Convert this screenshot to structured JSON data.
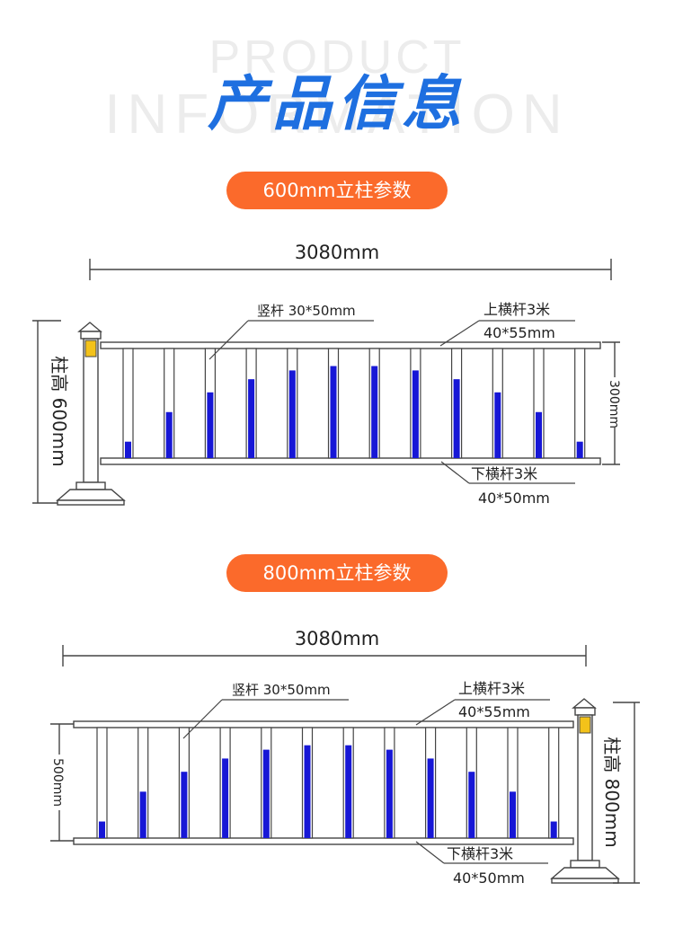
{
  "header": {
    "bg_line1": "PRODUCT",
    "bg_line2": "INFORMATION",
    "title": "产品信息"
  },
  "diagrams": [
    {
      "badge": "600mm立柱参数",
      "total_length": "3080mm",
      "vertical_bar": "竖杆 30*50mm",
      "top_rail_name": "上横杆3米",
      "top_rail_size": "40*55mm",
      "bottom_rail_name": "下横杆3米",
      "bottom_rail_size": "40*50mm",
      "post_height": "柱高 600mm",
      "panel_height": "300mm"
    },
    {
      "badge": "800mm立柱参数",
      "total_length": "3080mm",
      "vertical_bar": "竖杆 30*50mm",
      "top_rail_name": "上横杆3米",
      "top_rail_size": "40*55mm",
      "bottom_rail_name": "下横杆3米",
      "bottom_rail_size": "40*50mm",
      "post_height": "柱高 800mm",
      "panel_height": "500mm"
    }
  ],
  "colors": {
    "title_blue": "#1e6fe0",
    "badge_orange": "#fb6a2b",
    "bar_blue": "#1717d6",
    "reflector_yellow": "#f3c21a",
    "line_gray": "#444444"
  }
}
